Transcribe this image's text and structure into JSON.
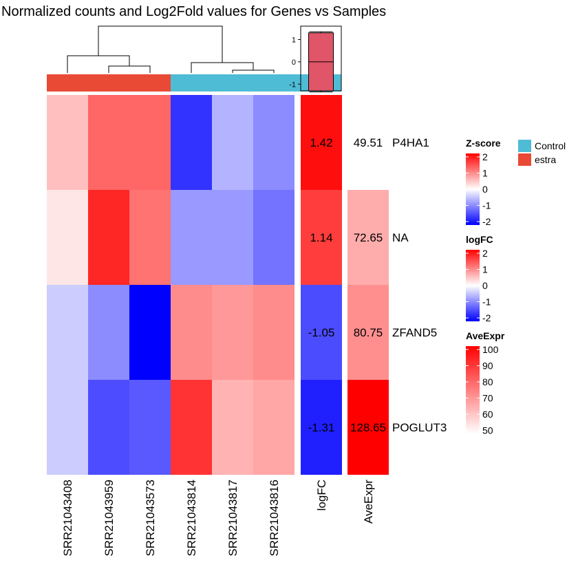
{
  "chart_data": {
    "type": "heatmap",
    "title": "Normalized counts and Log2Fold values for Genes vs Samples",
    "samples": [
      "SRR21043408",
      "SRR21043959",
      "SRR21043573",
      "SRR21043814",
      "SRR21043817",
      "SRR21043816"
    ],
    "sample_groups": [
      "estra",
      "estra",
      "estra",
      "Control",
      "Control",
      "Control"
    ],
    "group_colors": {
      "Control": "#4FBCD6",
      "estra": "#E84A35"
    },
    "genes": [
      "P4HA1",
      "NA",
      "ZFAND5",
      "POGLUT3"
    ],
    "zscores": [
      [
        0.5,
        1.2,
        1.2,
        -1.6,
        -0.6,
        -0.9
      ],
      [
        0.2,
        1.7,
        1.1,
        -0.8,
        -0.8,
        -1.1
      ],
      [
        -0.4,
        -0.9,
        -2.0,
        0.9,
        0.8,
        0.9
      ],
      [
        -0.4,
        -1.4,
        -1.3,
        1.6,
        0.6,
        0.7
      ]
    ],
    "logFC": [
      1.42,
      1.14,
      -1.05,
      -1.31
    ],
    "logFC_labels": [
      "1.42",
      "1.14",
      "-1.05",
      "-1.31"
    ],
    "AveExpr": [
      49.51,
      72.65,
      80.75,
      128.65
    ],
    "AveExpr_labels": [
      "49.51",
      "72.65",
      "80.75",
      "128.65"
    ],
    "extra_column_labels": [
      "logFC",
      "AveExpr"
    ],
    "boxplot": {
      "ticks": [
        1,
        0,
        -1
      ],
      "ylim": [
        -1.3,
        1.6
      ],
      "q1": -1.3,
      "median": 0,
      "q3": 1.3,
      "min": -1.35,
      "max": 1.35,
      "color": "#E05568"
    },
    "legends": [
      {
        "title": "Z-score",
        "ticks": [
          "2",
          "1",
          "0",
          "-1",
          "-2"
        ],
        "colors": [
          "#FF0000",
          "#FFFFFF",
          "#0000FF"
        ]
      },
      {
        "title": "logFC",
        "ticks": [
          "2",
          "1",
          "0",
          "-1",
          "-2"
        ],
        "colors": [
          "#FF0000",
          "#FFFFFF",
          "#0000FF"
        ]
      },
      {
        "title": "AveExpr",
        "ticks": [
          "100",
          "90",
          "80",
          "70",
          "60",
          "50"
        ],
        "colors": [
          "#FF0000",
          "#FFFFFF"
        ]
      }
    ],
    "group_legend": [
      "Control",
      "estra"
    ]
  }
}
